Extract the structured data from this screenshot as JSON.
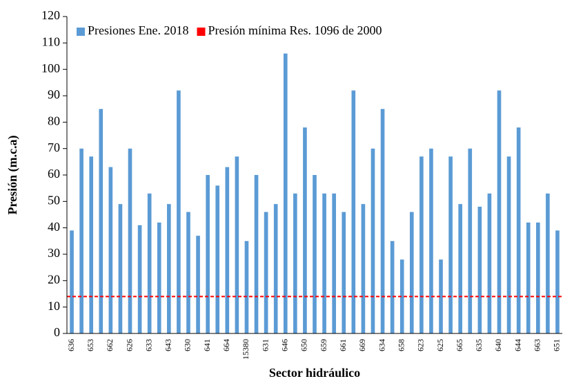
{
  "chart_data": {
    "type": "bar",
    "xlabel": "Sector hidráulico",
    "ylabel": "Presión (m.c.a)",
    "categories": [
      "636",
      null,
      "653",
      null,
      "662",
      null,
      "626",
      null,
      "633",
      null,
      "643",
      null,
      "630",
      null,
      "641",
      null,
      "664",
      null,
      "15380",
      null,
      "631",
      null,
      "646",
      null,
      "650",
      null,
      "659",
      null,
      "661",
      null,
      "669",
      null,
      "634",
      null,
      "658",
      null,
      "623",
      null,
      "625",
      null,
      "665",
      null,
      "635",
      null,
      "640",
      null,
      "644",
      null,
      "663",
      null,
      "651"
    ],
    "series": [
      {
        "name": "Presiones Ene. 2018",
        "color": "#5b9bd5",
        "values": [
          39,
          70,
          67,
          85,
          63,
          49,
          70,
          41,
          53,
          42,
          49,
          92,
          46,
          37,
          60,
          56,
          63,
          67,
          35,
          60,
          46,
          49,
          106,
          53,
          78,
          60,
          53,
          53,
          46,
          92,
          49,
          70,
          85,
          35,
          28,
          46,
          67,
          70,
          28,
          67,
          49,
          70,
          48,
          53,
          92,
          67,
          78,
          42,
          42,
          53,
          39
        ]
      }
    ],
    "reference_line": {
      "name": "Presión mínima Res. 1096 de 2000",
      "color": "#ff0000",
      "value": 14
    },
    "ylim": [
      0,
      120
    ],
    "yticks": [
      0,
      10,
      20,
      30,
      40,
      50,
      60,
      70,
      80,
      90,
      100,
      110,
      120
    ],
    "legend": "top-left"
  }
}
